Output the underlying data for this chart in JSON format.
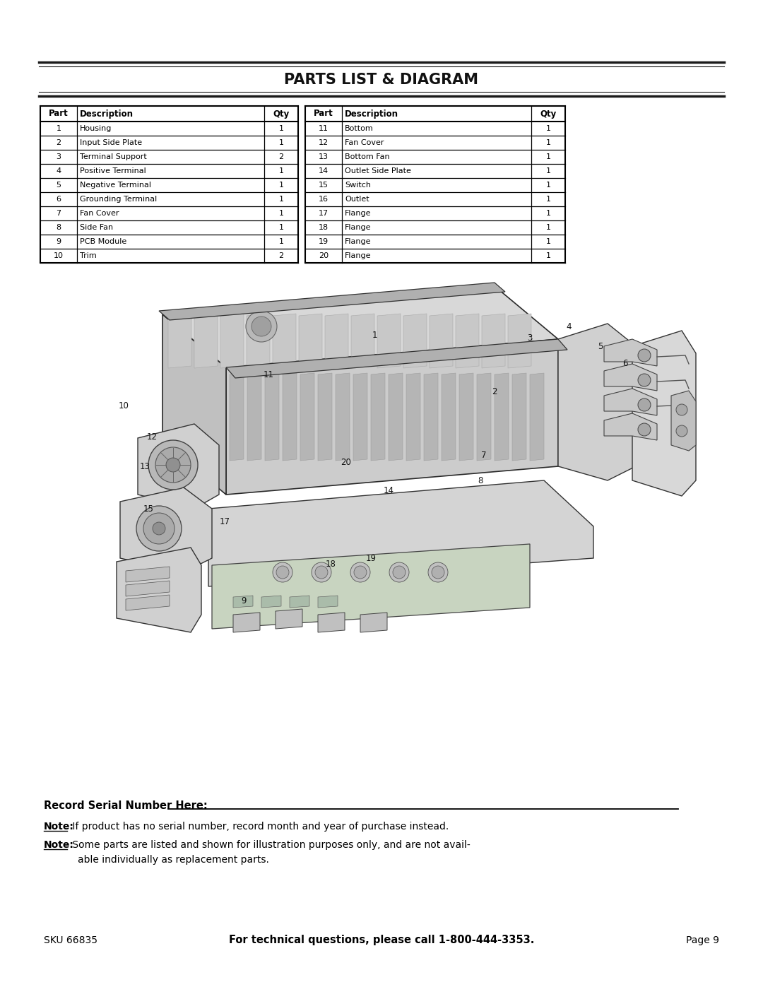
{
  "title": "PARTS LIST & DIAGRAM",
  "left_table_headers": [
    "Part",
    "Description",
    "Qty"
  ],
  "left_table_rows": [
    [
      "1",
      "Housing",
      "1"
    ],
    [
      "2",
      "Input Side Plate",
      "1"
    ],
    [
      "3",
      "Terminal Support",
      "2"
    ],
    [
      "4",
      "Positive Terminal",
      "1"
    ],
    [
      "5",
      "Negative Terminal",
      "1"
    ],
    [
      "6",
      "Grounding Terminal",
      "1"
    ],
    [
      "7",
      "Fan Cover",
      "1"
    ],
    [
      "8",
      "Side Fan",
      "1"
    ],
    [
      "9",
      "PCB Module",
      "1"
    ],
    [
      "10",
      "Trim",
      "2"
    ]
  ],
  "right_table_headers": [
    "Part",
    "Description",
    "Qty"
  ],
  "right_table_rows": [
    [
      "11",
      "Bottom",
      "1"
    ],
    [
      "12",
      "Fan Cover",
      "1"
    ],
    [
      "13",
      "Bottom Fan",
      "1"
    ],
    [
      "14",
      "Outlet Side Plate",
      "1"
    ],
    [
      "15",
      "Switch",
      "1"
    ],
    [
      "16",
      "Outlet",
      "1"
    ],
    [
      "17",
      "Flange",
      "1"
    ],
    [
      "18",
      "Flange",
      "1"
    ],
    [
      "19",
      "Flange",
      "1"
    ],
    [
      "20",
      "Flange",
      "1"
    ]
  ],
  "serial_label": "Record Serial Number Here:",
  "note1_bold": "Note:",
  "note1_text": " If product has no serial number, record month and year of purchase instead.",
  "note2_bold": "Note:",
  "note2_line1": " Some parts are listed and shown for illustration purposes only, and are not avail-",
  "note2_line2": "able individually as replacement parts.",
  "footer_sku": "SKU 66835",
  "footer_tech": "For technical questions, please call 1-800-444-3353.",
  "footer_page": "Page 9",
  "bg_color": "#ffffff",
  "text_color": "#111111",
  "title_font_size": 15,
  "header_font_size": 8.5,
  "body_font_size": 8.0
}
